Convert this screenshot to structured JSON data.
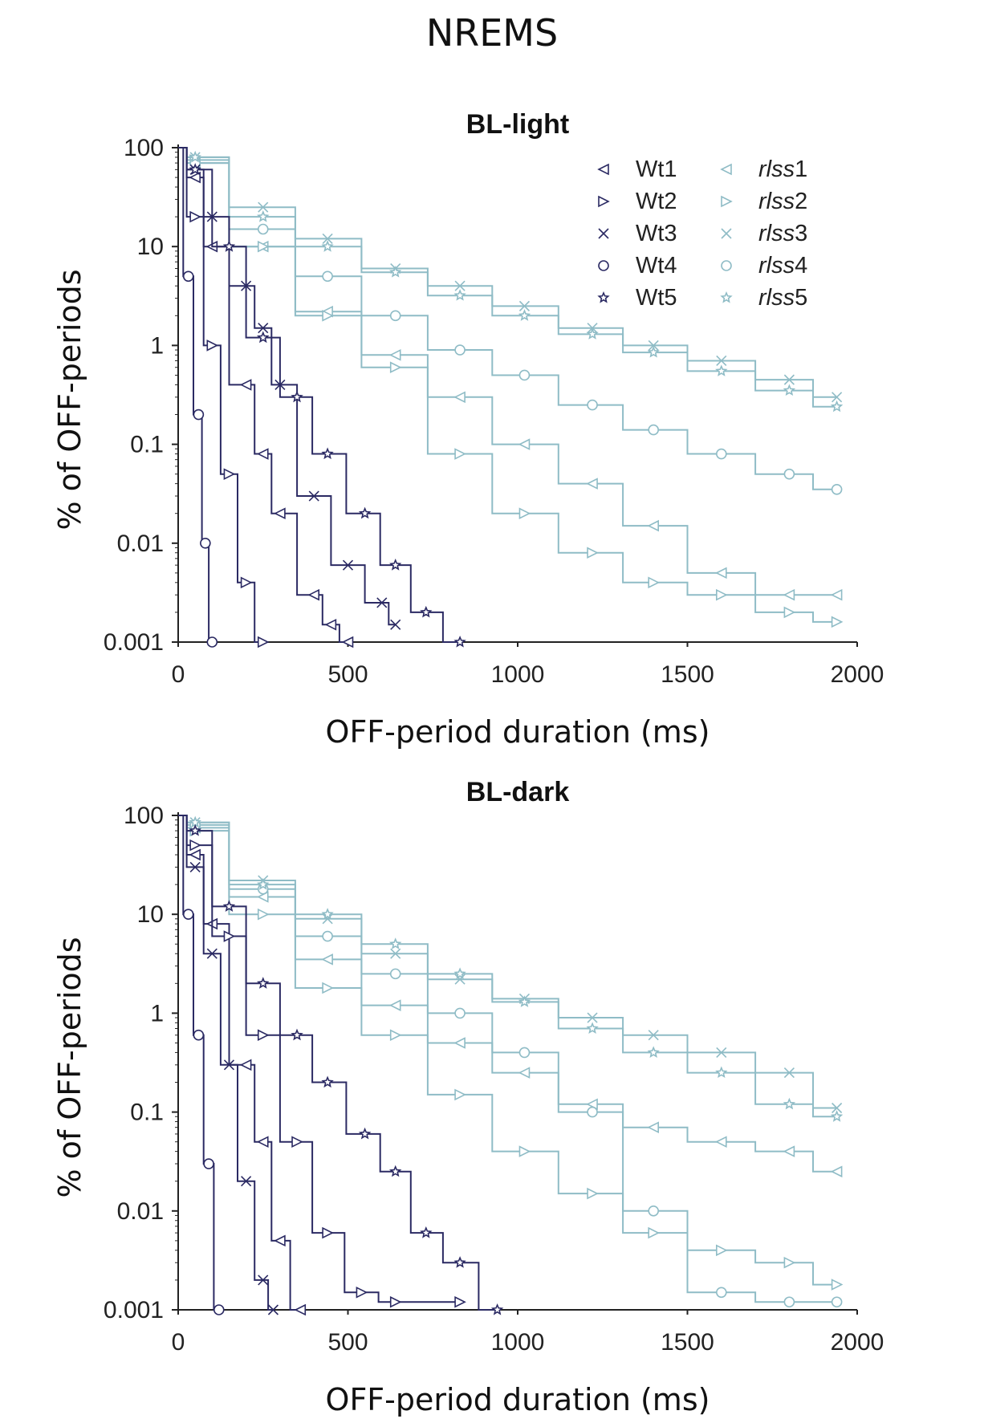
{
  "figure_title": "NREMS",
  "colors": {
    "wt": "#2b2a63",
    "rlss": "#8fbcc6",
    "axis": "#222222"
  },
  "legend": [
    {
      "label": "Wt1",
      "group": "wt",
      "marker": "triangle-left"
    },
    {
      "label": "Wt2",
      "group": "wt",
      "marker": "triangle-right"
    },
    {
      "label": "Wt3",
      "group": "wt",
      "marker": "x"
    },
    {
      "label": "Wt4",
      "group": "wt",
      "marker": "circle"
    },
    {
      "label": "Wt5",
      "group": "wt",
      "marker": "star"
    },
    {
      "label_prefix": "rlss",
      "label_suffix": "1",
      "group": "rlss",
      "marker": "triangle-left"
    },
    {
      "label_prefix": "rlss",
      "label_suffix": "2",
      "group": "rlss",
      "marker": "triangle-right"
    },
    {
      "label_prefix": "rlss",
      "label_suffix": "3",
      "group": "rlss",
      "marker": "x"
    },
    {
      "label_prefix": "rlss",
      "label_suffix": "4",
      "group": "rlss",
      "marker": "circle"
    },
    {
      "label_prefix": "rlss",
      "label_suffix": "5",
      "group": "rlss",
      "marker": "star"
    }
  ],
  "chart_data": [
    {
      "type": "line",
      "title": "BL-light",
      "xlabel": "OFF-period duration (ms)",
      "ylabel": "% of OFF-periods",
      "xlim": [
        0,
        2000
      ],
      "ylim": [
        0.001,
        100
      ],
      "yscale": "log",
      "xticks": [
        "0",
        "500",
        "1000",
        "1500",
        "2000"
      ],
      "yticks": [
        "100",
        "10",
        "1",
        "0.1",
        "0.01",
        "0.001"
      ],
      "series": [
        {
          "name": "Wt1",
          "group": "wt",
          "marker": "triangle-left",
          "x": [
            0,
            50,
            100,
            200,
            250,
            300,
            400,
            450,
            500
          ],
          "y": [
            100,
            50,
            10,
            0.4,
            0.08,
            0.02,
            0.003,
            0.0015,
            0.001
          ]
        },
        {
          "name": "Wt2",
          "group": "wt",
          "marker": "triangle-right",
          "x": [
            0,
            50,
            100,
            150,
            200,
            250
          ],
          "y": [
            100,
            20,
            1,
            0.05,
            0.004,
            0.001
          ]
        },
        {
          "name": "Wt3",
          "group": "wt",
          "marker": "x",
          "x": [
            0,
            50,
            100,
            200,
            250,
            300,
            400,
            500,
            600,
            640
          ],
          "y": [
            100,
            60,
            20,
            4,
            1.5,
            0.4,
            0.03,
            0.006,
            0.0025,
            0.0015
          ]
        },
        {
          "name": "Wt4",
          "group": "wt",
          "marker": "circle",
          "x": [
            0,
            30,
            60,
            80,
            100
          ],
          "y": [
            100,
            5,
            0.2,
            0.01,
            0.001
          ]
        },
        {
          "name": "Wt5",
          "group": "wt",
          "marker": "star",
          "x": [
            0,
            50,
            150,
            250,
            350,
            440,
            550,
            640,
            730,
            830
          ],
          "y": [
            100,
            60,
            10,
            1.2,
            0.3,
            0.08,
            0.02,
            0.006,
            0.002,
            0.001
          ]
        },
        {
          "name": "rlss1",
          "group": "rlss",
          "marker": "triangle-left",
          "x": [
            0,
            50,
            250,
            440,
            640,
            830,
            1020,
            1220,
            1400,
            1600,
            1800,
            1940
          ],
          "y": [
            100,
            70,
            10,
            2.2,
            0.8,
            0.3,
            0.1,
            0.04,
            0.015,
            0.005,
            0.003,
            0.003
          ]
        },
        {
          "name": "rlss2",
          "group": "rlss",
          "marker": "triangle-right",
          "x": [
            0,
            50,
            250,
            440,
            640,
            830,
            1020,
            1220,
            1400,
            1600,
            1800,
            1940
          ],
          "y": [
            100,
            75,
            10,
            2.0,
            0.6,
            0.08,
            0.02,
            0.008,
            0.004,
            0.003,
            0.002,
            0.0016
          ]
        },
        {
          "name": "rlss3",
          "group": "rlss",
          "marker": "x",
          "x": [
            0,
            50,
            250,
            440,
            640,
            830,
            1020,
            1220,
            1400,
            1600,
            1800,
            1940
          ],
          "y": [
            100,
            80,
            25,
            12,
            6,
            4,
            2.5,
            1.5,
            1,
            0.7,
            0.45,
            0.3
          ]
        },
        {
          "name": "rlss4",
          "group": "rlss",
          "marker": "circle",
          "x": [
            0,
            50,
            250,
            440,
            640,
            830,
            1020,
            1220,
            1400,
            1600,
            1800,
            1940
          ],
          "y": [
            100,
            70,
            15,
            5,
            2,
            0.9,
            0.5,
            0.25,
            0.14,
            0.08,
            0.05,
            0.035
          ]
        },
        {
          "name": "rlss5",
          "group": "rlss",
          "marker": "star",
          "x": [
            0,
            50,
            250,
            440,
            640,
            830,
            1020,
            1220,
            1400,
            1600,
            1800,
            1940
          ],
          "y": [
            100,
            80,
            20,
            10,
            5.5,
            3.2,
            2,
            1.3,
            0.85,
            0.55,
            0.35,
            0.24
          ]
        }
      ]
    },
    {
      "type": "line",
      "title": "BL-dark",
      "xlabel": "OFF-period duration (ms)",
      "ylabel": "% of OFF-periods",
      "xlim": [
        0,
        2000
      ],
      "ylim": [
        0.001,
        100
      ],
      "yscale": "log",
      "xticks": [
        "0",
        "500",
        "1000",
        "1500",
        "2000"
      ],
      "yticks": [
        "100",
        "10",
        "1",
        "0.1",
        "0.01",
        "0.001"
      ],
      "series": [
        {
          "name": "Wt1",
          "group": "wt",
          "marker": "triangle-left",
          "x": [
            0,
            50,
            100,
            200,
            250,
            300,
            360
          ],
          "y": [
            100,
            40,
            8,
            0.3,
            0.05,
            0.005,
            0.001
          ]
        },
        {
          "name": "Wt2",
          "group": "wt",
          "marker": "triangle-right",
          "x": [
            0,
            50,
            150,
            250,
            350,
            440,
            540,
            640,
            830
          ],
          "y": [
            100,
            50,
            6,
            0.6,
            0.05,
            0.006,
            0.0015,
            0.0012,
            0.0012
          ]
        },
        {
          "name": "Wt3",
          "group": "wt",
          "marker": "x",
          "x": [
            0,
            50,
            100,
            150,
            200,
            250,
            280
          ],
          "y": [
            100,
            30,
            4,
            0.3,
            0.02,
            0.002,
            0.001
          ]
        },
        {
          "name": "Wt4",
          "group": "wt",
          "marker": "circle",
          "x": [
            0,
            30,
            60,
            90,
            120
          ],
          "y": [
            100,
            10,
            0.6,
            0.03,
            0.001
          ]
        },
        {
          "name": "Wt5",
          "group": "wt",
          "marker": "star",
          "x": [
            0,
            50,
            150,
            250,
            350,
            440,
            550,
            640,
            730,
            830,
            940
          ],
          "y": [
            100,
            70,
            12,
            2,
            0.6,
            0.2,
            0.06,
            0.025,
            0.006,
            0.003,
            0.001
          ]
        },
        {
          "name": "rlss1",
          "group": "rlss",
          "marker": "triangle-left",
          "x": [
            0,
            50,
            250,
            440,
            640,
            830,
            1020,
            1220,
            1400,
            1600,
            1800,
            1940
          ],
          "y": [
            100,
            75,
            15,
            3.5,
            1.2,
            0.5,
            0.25,
            0.12,
            0.07,
            0.05,
            0.04,
            0.025
          ]
        },
        {
          "name": "rlss2",
          "group": "rlss",
          "marker": "triangle-right",
          "x": [
            0,
            50,
            250,
            440,
            640,
            830,
            1020,
            1220,
            1400,
            1600,
            1800,
            1940
          ],
          "y": [
            100,
            70,
            10,
            1.8,
            0.6,
            0.15,
            0.04,
            0.015,
            0.006,
            0.004,
            0.003,
            0.0018
          ]
        },
        {
          "name": "rlss3",
          "group": "rlss",
          "marker": "x",
          "x": [
            0,
            50,
            250,
            440,
            640,
            830,
            1020,
            1220,
            1400,
            1600,
            1800,
            1940
          ],
          "y": [
            100,
            85,
            22,
            9,
            4,
            2.2,
            1.4,
            0.9,
            0.6,
            0.4,
            0.25,
            0.11
          ]
        },
        {
          "name": "rlss4",
          "group": "rlss",
          "marker": "circle",
          "x": [
            0,
            50,
            250,
            440,
            640,
            830,
            1020,
            1220,
            1400,
            1600,
            1800,
            1940
          ],
          "y": [
            100,
            80,
            18,
            6,
            2.5,
            1,
            0.4,
            0.1,
            0.01,
            0.0015,
            0.0012,
            0.0012
          ]
        },
        {
          "name": "rlss5",
          "group": "rlss",
          "marker": "star",
          "x": [
            0,
            50,
            250,
            440,
            640,
            830,
            1020,
            1220,
            1400,
            1600,
            1800,
            1940
          ],
          "y": [
            100,
            85,
            20,
            10,
            5,
            2.5,
            1.3,
            0.7,
            0.4,
            0.25,
            0.12,
            0.09
          ]
        }
      ]
    }
  ]
}
